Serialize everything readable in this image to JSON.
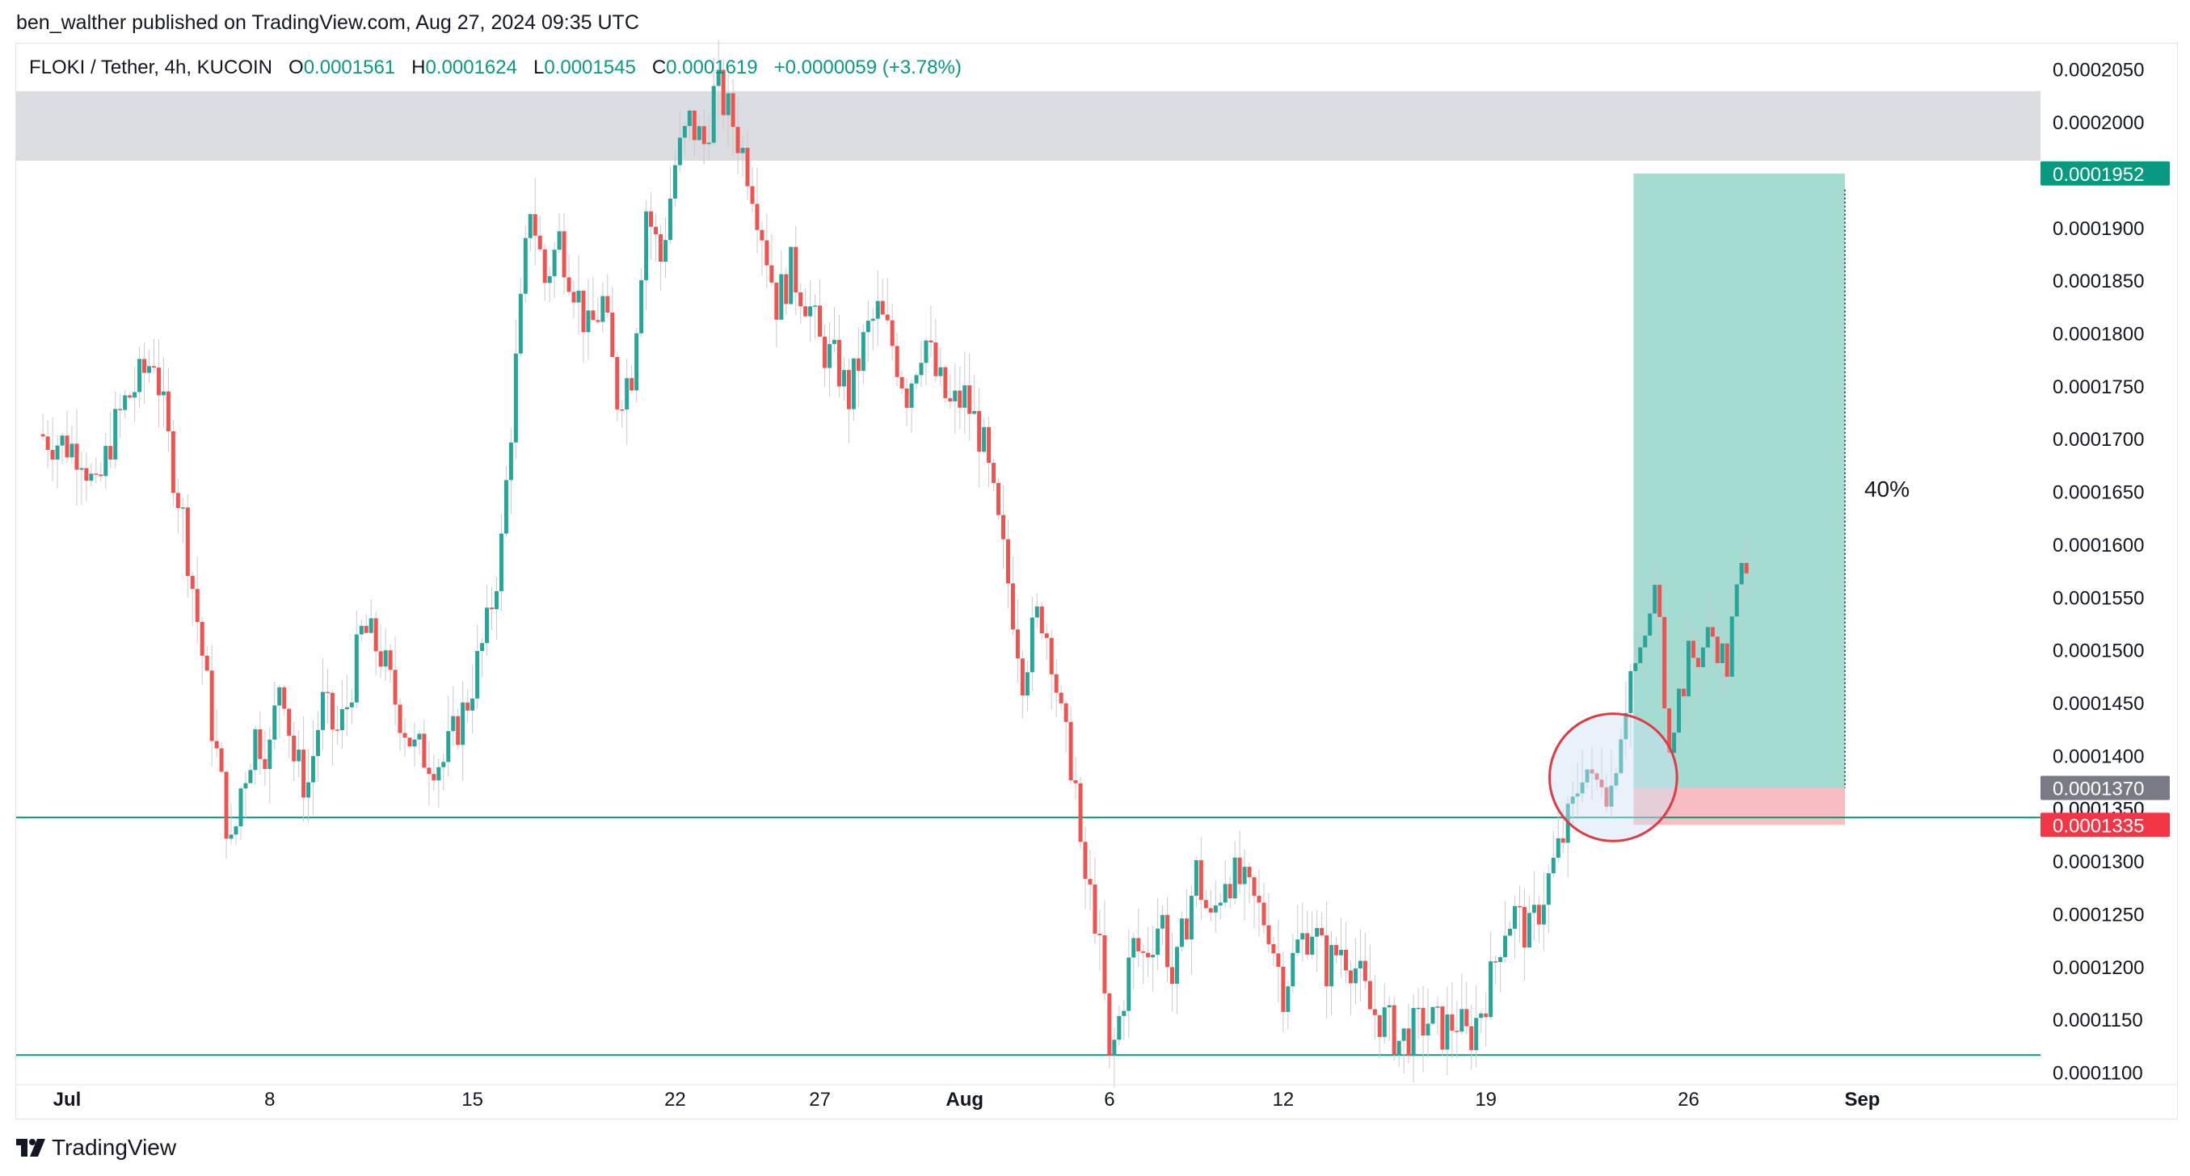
{
  "header": {
    "published_by": "ben_walther published on TradingView.com, Aug 27, 2024 09:35 UTC"
  },
  "legend": {
    "symbol": "FLOKI / Tether, 4h, KUCOIN",
    "o_label": "O",
    "o_value": "0.0001561",
    "h_label": "H",
    "h_value": "0.0001624",
    "l_label": "L",
    "l_value": "0.0001545",
    "c_label": "C",
    "c_value": "0.0001619",
    "change": "+0.0000059 (+3.78%)"
  },
  "footer": {
    "brand": "TradingView",
    "logo_icon": "tradingview-logo-icon"
  },
  "colors": {
    "up": "#26a69a",
    "down": "#ef5350",
    "line": "#089981",
    "target": "#9fdacf",
    "stop": "#f7b9bd",
    "zone": "#dcdde0",
    "circle": "#e03a44"
  },
  "chart_data": {
    "type": "candlestick",
    "ylim": [
      0.0001095,
      0.0002075
    ],
    "y_ticks": [
      "0.0002050",
      "0.0002000",
      "0.0001950",
      "0.0001900",
      "0.0001850",
      "0.0001800",
      "0.0001750",
      "0.0001700",
      "0.0001650",
      "0.0001600",
      "0.0001550",
      "0.0001500",
      "0.0001450",
      "0.0001400",
      "0.0001350",
      "0.0001300",
      "0.0001250",
      "0.0001200",
      "0.0001150",
      "0.0001100"
    ],
    "x_ticks": [
      {
        "label": "Jul",
        "day": 0,
        "bold": true
      },
      {
        "label": "8",
        "day": 7
      },
      {
        "label": "15",
        "day": 14
      },
      {
        "label": "22",
        "day": 21
      },
      {
        "label": "27",
        "day": 26
      },
      {
        "label": "Aug",
        "day": 31,
        "bold": true
      },
      {
        "label": "6",
        "day": 36
      },
      {
        "label": "12",
        "day": 42
      },
      {
        "label": "19",
        "day": 49
      },
      {
        "label": "26",
        "day": 56
      },
      {
        "label": "Sep",
        "day": 62,
        "bold": true
      }
    ],
    "x_unit": "days since Jul 1, 2024",
    "close_path": [
      [
        -1,
        0.0001705
      ],
      [
        0.5,
        0.000169
      ],
      [
        1,
        0.0001645
      ],
      [
        1.5,
        0.00017
      ],
      [
        2,
        0.0001735
      ],
      [
        2.6,
        0.000176
      ],
      [
        3,
        0.000178
      ],
      [
        3.6,
        0.000168
      ],
      [
        4,
        0.0001625
      ],
      [
        4.6,
        0.000151
      ],
      [
        5,
        0.000143
      ],
      [
        5.7,
        0.0001305
      ],
      [
        6,
        0.000137
      ],
      [
        6.5,
        0.000142
      ],
      [
        7,
        0.0001405
      ],
      [
        7.4,
        0.0001485
      ],
      [
        7.8,
        0.00014
      ],
      [
        8.3,
        0.000137
      ],
      [
        8.8,
        0.000145
      ],
      [
        9.3,
        0.000142
      ],
      [
        9.6,
        0.000144
      ],
      [
        10.2,
        0.000152
      ],
      [
        10.8,
        0.00015
      ],
      [
        11.3,
        0.0001455
      ],
      [
        12,
        0.0001405
      ],
      [
        13,
        0.0001395
      ],
      [
        13.8,
        0.000145
      ],
      [
        14.5,
        0.000152
      ],
      [
        15,
        0.00016
      ],
      [
        15.5,
        0.000177
      ],
      [
        16,
        0.0001925
      ],
      [
        16.5,
        0.000185
      ],
      [
        17,
        0.000189
      ],
      [
        17.6,
        0.000184
      ],
      [
        18,
        0.00018
      ],
      [
        18.5,
        0.000183
      ],
      [
        19,
        0.000174
      ],
      [
        19.5,
        0.0001765
      ],
      [
        20,
        0.000192
      ],
      [
        20.5,
        0.000187
      ],
      [
        21,
        0.000196
      ],
      [
        21.5,
        0.0002
      ],
      [
        22,
        0.000198
      ],
      [
        22.4,
        0.0002035
      ],
      [
        23,
        0.0002
      ],
      [
        23.6,
        0.000195
      ],
      [
        24,
        0.00019
      ],
      [
        24.5,
        0.000183
      ],
      [
        25,
        0.000186
      ],
      [
        25.6,
        0.000183
      ],
      [
        26,
        0.000179
      ],
      [
        26.6,
        0.000177
      ],
      [
        27,
        0.000174
      ],
      [
        27.6,
        0.00018
      ],
      [
        28,
        0.000182
      ],
      [
        28.5,
        0.000179
      ],
      [
        29,
        0.0001745
      ],
      [
        29.6,
        0.00018
      ],
      [
        30,
        0.000176
      ],
      [
        30.5,
        0.000173
      ],
      [
        31,
        0.000174
      ],
      [
        31.6,
        0.00017
      ],
      [
        32,
        0.000164
      ],
      [
        32.6,
        0.000155
      ],
      [
        33,
        0.000148
      ],
      [
        33.6,
        0.000154
      ],
      [
        34,
        0.00015
      ],
      [
        34.4,
        0.000142
      ],
      [
        34.8,
        0.0001385
      ],
      [
        35,
        0.00013
      ],
      [
        35.5,
        0.000125
      ],
      [
        35.8,
        0.000118
      ],
      [
        36,
        0.0001105
      ],
      [
        36.4,
        0.000116
      ],
      [
        36.8,
        0.000122
      ],
      [
        37.2,
        0.000121
      ],
      [
        37.8,
        0.000125
      ],
      [
        38.2,
        0.000118
      ],
      [
        38.6,
        0.000124
      ],
      [
        39,
        0.000129
      ],
      [
        39.5,
        0.000124
      ],
      [
        40,
        0.000129
      ],
      [
        40.5,
        0.000128
      ],
      [
        41,
        0.000126
      ],
      [
        41.5,
        0.000124
      ],
      [
        42,
        0.000118
      ],
      [
        42.5,
        0.000122
      ],
      [
        43,
        0.000124
      ],
      [
        43.5,
        0.00012
      ],
      [
        44,
        0.000122
      ],
      [
        44.5,
        0.00012
      ],
      [
        45,
        0.000116
      ],
      [
        45.5,
        0.000115
      ],
      [
        46,
        0.000113
      ],
      [
        46.5,
        0.000114
      ],
      [
        47,
        0.000115
      ],
      [
        47.5,
        0.000114
      ],
      [
        48,
        0.000115
      ],
      [
        48.4,
        0.000113
      ],
      [
        48.8,
        0.000116
      ],
      [
        49.2,
        0.000119
      ],
      [
        49.6,
        0.000124
      ],
      [
        50,
        0.000125
      ],
      [
        50.5,
        0.000123
      ],
      [
        51,
        0.000127
      ],
      [
        51.5,
        0.000131
      ],
      [
        52,
        0.000135
      ],
      [
        52.4,
        0.00014
      ],
      [
        52.7,
        0.0001365
      ],
      [
        53,
        0.0001385
      ],
      [
        53.3,
        0.0001365
      ],
      [
        53.6,
        0.000142
      ],
      [
        54,
        0.000148
      ],
      [
        54.4,
        0.000149
      ],
      [
        54.8,
        0.000156
      ],
      [
        55,
        0.000152
      ],
      [
        55.3,
        0.000142
      ],
      [
        55.6,
        0.000145
      ],
      [
        56,
        0.000149
      ],
      [
        56.4,
        0.00015
      ],
      [
        56.8,
        0.0001515
      ],
      [
        57,
        0.000151
      ],
      [
        57.3,
        0.000148
      ],
      [
        57.6,
        0.000154
      ],
      [
        58,
        0.0001595
      ],
      [
        58.1,
        0.0001619
      ]
    ],
    "resistance_zone": {
      "low": 0.0001964,
      "high": 0.000203
    },
    "support_lines": [
      0.0001342,
      0.0001117
    ],
    "position": {
      "label": "40%",
      "entry": "0.0001370",
      "entry_value": 0.000137,
      "target": "0.0001952",
      "target_value": 0.0001952,
      "stop": "0.0001335",
      "stop_value": 0.0001335,
      "start_day": 54.1,
      "end_day": 61.4,
      "partial_label": "0.0001350"
    },
    "highlight_circle": {
      "center_day": 53.4,
      "center_price": 0.000138,
      "radius_days": 2.2
    }
  }
}
